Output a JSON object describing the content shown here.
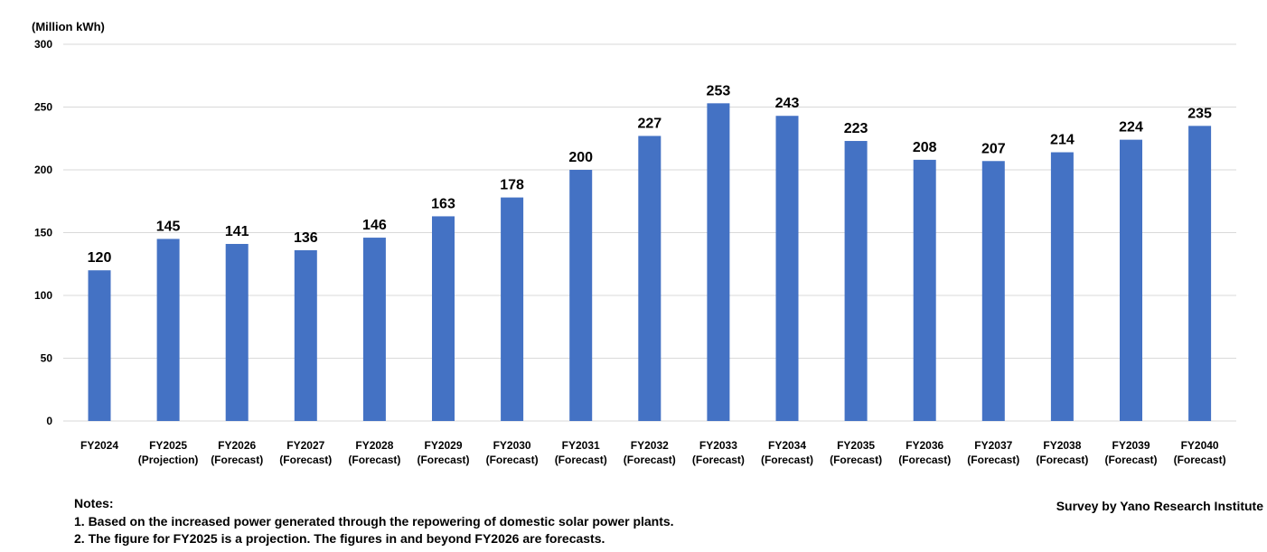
{
  "chart_data": {
    "type": "bar",
    "unit_label": "(Million kWh)",
    "categories": [
      [
        "FY2024",
        ""
      ],
      [
        "FY2025",
        "(Projection)"
      ],
      [
        "FY2026",
        "(Forecast)"
      ],
      [
        "FY2027",
        "(Forecast)"
      ],
      [
        "FY2028",
        "(Forecast)"
      ],
      [
        "FY2029",
        "(Forecast)"
      ],
      [
        "FY2030",
        "(Forecast)"
      ],
      [
        "FY2031",
        "(Forecast)"
      ],
      [
        "FY2032",
        "(Forecast)"
      ],
      [
        "FY2033",
        "(Forecast)"
      ],
      [
        "FY2034",
        "(Forecast)"
      ],
      [
        "FY2035",
        "(Forecast)"
      ],
      [
        "FY2036",
        "(Forecast)"
      ],
      [
        "FY2037",
        "(Forecast)"
      ],
      [
        "FY2038",
        "(Forecast)"
      ],
      [
        "FY2039",
        "(Forecast)"
      ],
      [
        "FY2040",
        "(Forecast)"
      ]
    ],
    "values": [
      120,
      145,
      141,
      136,
      146,
      163,
      178,
      200,
      227,
      253,
      243,
      223,
      208,
      207,
      214,
      224,
      235
    ],
    "ylim": [
      0,
      300
    ],
    "yticks": [
      0,
      50,
      100,
      150,
      200,
      250,
      300
    ],
    "grid": true,
    "bar_color": "#4472C4",
    "grid_color": "#D9D9D9"
  },
  "notes": {
    "heading": "Notes:",
    "lines": [
      "1. Based on the increased power generated through the repowering of domestic solar power plants.",
      "2. The figure for FY2025 is a projection. The figures in and beyond FY2026 are forecasts."
    ]
  },
  "source": "Survey by Yano Research Institute"
}
